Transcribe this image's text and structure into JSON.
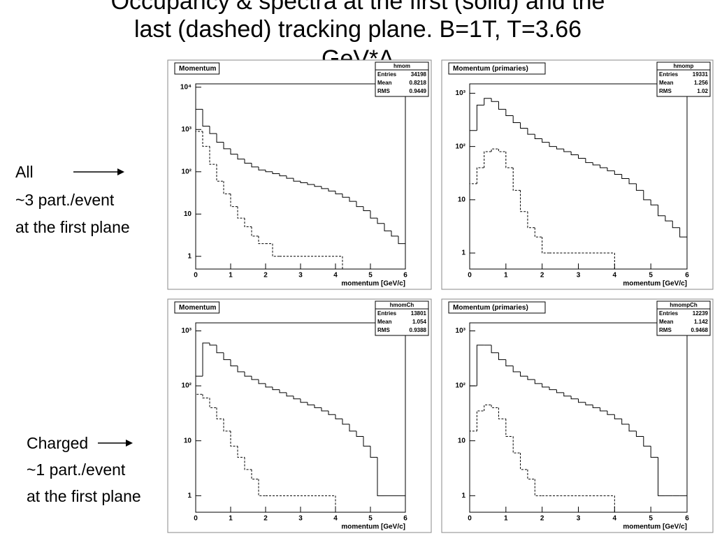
{
  "slide": {
    "title_lines": [
      "Occupancy & spectra at the first (solid) and the",
      "last (dashed) tracking plane. B=1T, T=3.66",
      "GeV*A"
    ],
    "annotations": [
      {
        "lines": [
          "All",
          "~3 part./event",
          "at the first plane"
        ]
      },
      {
        "lines": [
          "Charged",
          "~1 part./event",
          "at the first plane"
        ]
      }
    ]
  },
  "chart_data": [
    {
      "type": "histogram",
      "title": "Momentum",
      "stats_name": "hmom",
      "stats": [
        {
          "label": "Entries",
          "value": 34198
        },
        {
          "label": "Mean",
          "value": 0.8218
        },
        {
          "label": "RMS",
          "value": 0.9449
        }
      ],
      "xlabel": "momentum [GeV/c]",
      "log_y": true,
      "bins": [
        0,
        0.2,
        0.4,
        0.6,
        0.8,
        1,
        1.2,
        1.4,
        1.6,
        1.8,
        2,
        2.2,
        2.4,
        2.6,
        2.8,
        3,
        3.2,
        3.4,
        3.6,
        3.8,
        4,
        4.2,
        4.4,
        4.6,
        4.8,
        5,
        5.2,
        5.4,
        5.6,
        5.8,
        6
      ],
      "xlim": [
        0,
        6
      ],
      "xticks": [
        0,
        1,
        2,
        3,
        4,
        5,
        6
      ],
      "ylim": [
        0.5,
        12000
      ],
      "yticks": [
        1,
        10,
        {
          "value": 100,
          "label": "10²"
        },
        {
          "value": 1000,
          "label": "10³"
        },
        {
          "value": 10000,
          "label": "10⁴"
        }
      ],
      "series": [
        {
          "color": "#000000",
          "line_style": "solid",
          "values": [
            3000,
            1200,
            800,
            500,
            350,
            260,
            200,
            160,
            130,
            110,
            100,
            90,
            80,
            70,
            60,
            55,
            50,
            45,
            40,
            35,
            30,
            25,
            20,
            15,
            12,
            8,
            6,
            4,
            3,
            2
          ]
        },
        {
          "color": "#000000",
          "line_style": "dashed",
          "values": [
            900,
            400,
            150,
            60,
            30,
            15,
            8,
            5,
            3,
            2,
            2,
            1,
            1,
            1,
            1,
            1,
            1,
            1,
            1,
            1,
            1,
            0,
            0,
            0,
            0,
            0,
            0,
            0,
            0,
            0
          ]
        }
      ]
    },
    {
      "type": "histogram",
      "title": "Momentum (primaries)",
      "stats_name": "hmomp",
      "stats": [
        {
          "label": "Entries",
          "value": 19331
        },
        {
          "label": "Mean",
          "value": 1.256
        },
        {
          "label": "RMS",
          "value": 1.02
        }
      ],
      "xlabel": "momentum [GeV/c]",
      "log_y": true,
      "bins": [
        0,
        0.2,
        0.4,
        0.6,
        0.8,
        1,
        1.2,
        1.4,
        1.6,
        1.8,
        2,
        2.2,
        2.4,
        2.6,
        2.8,
        3,
        3.2,
        3.4,
        3.6,
        3.8,
        4,
        4.2,
        4.4,
        4.6,
        4.8,
        5,
        5.2,
        5.4,
        5.6,
        5.8,
        6
      ],
      "xlim": [
        0,
        6
      ],
      "xticks": [
        0,
        1,
        2,
        3,
        4,
        5,
        6
      ],
      "ylim": [
        0.5,
        1500
      ],
      "yticks": [
        1,
        10,
        {
          "value": 100,
          "label": "10²"
        },
        {
          "value": 1000,
          "label": "10³"
        }
      ],
      "series": [
        {
          "color": "#000000",
          "line_style": "solid",
          "values": [
            200,
            600,
            800,
            700,
            500,
            380,
            280,
            220,
            170,
            140,
            120,
            100,
            90,
            80,
            70,
            60,
            50,
            45,
            40,
            35,
            30,
            25,
            20,
            15,
            10,
            8,
            5,
            4,
            3,
            2
          ]
        },
        {
          "color": "#000000",
          "line_style": "dashed",
          "values": [
            20,
            40,
            80,
            90,
            80,
            40,
            15,
            6,
            3,
            2,
            1,
            1,
            1,
            1,
            1,
            1,
            1,
            1,
            1,
            1,
            0,
            0,
            0,
            0,
            0,
            0,
            0,
            0,
            0,
            0
          ]
        }
      ]
    },
    {
      "type": "histogram",
      "title": "Momentum",
      "stats_name": "hmomCh",
      "stats": [
        {
          "label": "Entries",
          "value": 13801
        },
        {
          "label": "Mean",
          "value": 1.054
        },
        {
          "label": "RMS",
          "value": 0.9388
        }
      ],
      "xlabel": "momentum [GeV/c]",
      "log_y": true,
      "bins": [
        0,
        0.2,
        0.4,
        0.6,
        0.8,
        1,
        1.2,
        1.4,
        1.6,
        1.8,
        2,
        2.2,
        2.4,
        2.6,
        2.8,
        3,
        3.2,
        3.4,
        3.6,
        3.8,
        4,
        4.2,
        4.4,
        4.6,
        4.8,
        5,
        5.2,
        5.4,
        5.6,
        5.8,
        6
      ],
      "xlim": [
        0,
        6
      ],
      "xticks": [
        0,
        1,
        2,
        3,
        4,
        5,
        6
      ],
      "ylim": [
        0.5,
        1400
      ],
      "yticks": [
        1,
        10,
        {
          "value": 100,
          "label": "10²"
        },
        {
          "value": 1000,
          "label": "10³"
        }
      ],
      "series": [
        {
          "color": "#000000",
          "line_style": "solid",
          "values": [
            150,
            600,
            550,
            400,
            300,
            230,
            180,
            150,
            130,
            110,
            95,
            85,
            75,
            65,
            58,
            50,
            45,
            40,
            35,
            30,
            25,
            20,
            15,
            12,
            8,
            5,
            1,
            1,
            1,
            1
          ]
        },
        {
          "color": "#000000",
          "line_style": "dashed",
          "values": [
            70,
            60,
            40,
            25,
            15,
            8,
            5,
            3,
            2,
            1,
            1,
            1,
            1,
            1,
            1,
            1,
            1,
            1,
            1,
            1,
            0,
            0,
            0,
            0,
            0,
            0,
            0,
            0,
            0,
            0
          ]
        }
      ]
    },
    {
      "type": "histogram",
      "title": "Momentum (primaries)",
      "stats_name": "hmompCh",
      "stats": [
        {
          "label": "Entries",
          "value": 12239
        },
        {
          "label": "Mean",
          "value": 1.142
        },
        {
          "label": "RMS",
          "value": 0.9468
        }
      ],
      "xlabel": "momentum [GeV/c]",
      "log_y": true,
      "bins": [
        0,
        0.2,
        0.4,
        0.6,
        0.8,
        1,
        1.2,
        1.4,
        1.6,
        1.8,
        2,
        2.2,
        2.4,
        2.6,
        2.8,
        3,
        3.2,
        3.4,
        3.6,
        3.8,
        4,
        4.2,
        4.4,
        4.6,
        4.8,
        5,
        5.2,
        5.4,
        5.6,
        5.8,
        6
      ],
      "xlim": [
        0,
        6
      ],
      "xticks": [
        0,
        1,
        2,
        3,
        4,
        5,
        6
      ],
      "ylim": [
        0.5,
        1400
      ],
      "yticks": [
        1,
        10,
        {
          "value": 100,
          "label": "10²"
        },
        {
          "value": 1000,
          "label": "10³"
        }
      ],
      "series": [
        {
          "color": "#000000",
          "line_style": "solid",
          "values": [
            100,
            550,
            550,
            400,
            300,
            230,
            180,
            150,
            130,
            110,
            95,
            85,
            75,
            65,
            58,
            50,
            45,
            40,
            35,
            30,
            25,
            20,
            15,
            12,
            8,
            5,
            1,
            1,
            1,
            1
          ]
        },
        {
          "color": "#000000",
          "line_style": "dashed",
          "values": [
            15,
            35,
            45,
            40,
            25,
            12,
            6,
            3,
            2,
            1,
            1,
            1,
            1,
            1,
            1,
            1,
            1,
            1,
            1,
            1,
            0,
            0,
            0,
            0,
            0,
            0,
            0,
            0,
            0,
            0
          ]
        }
      ]
    }
  ]
}
